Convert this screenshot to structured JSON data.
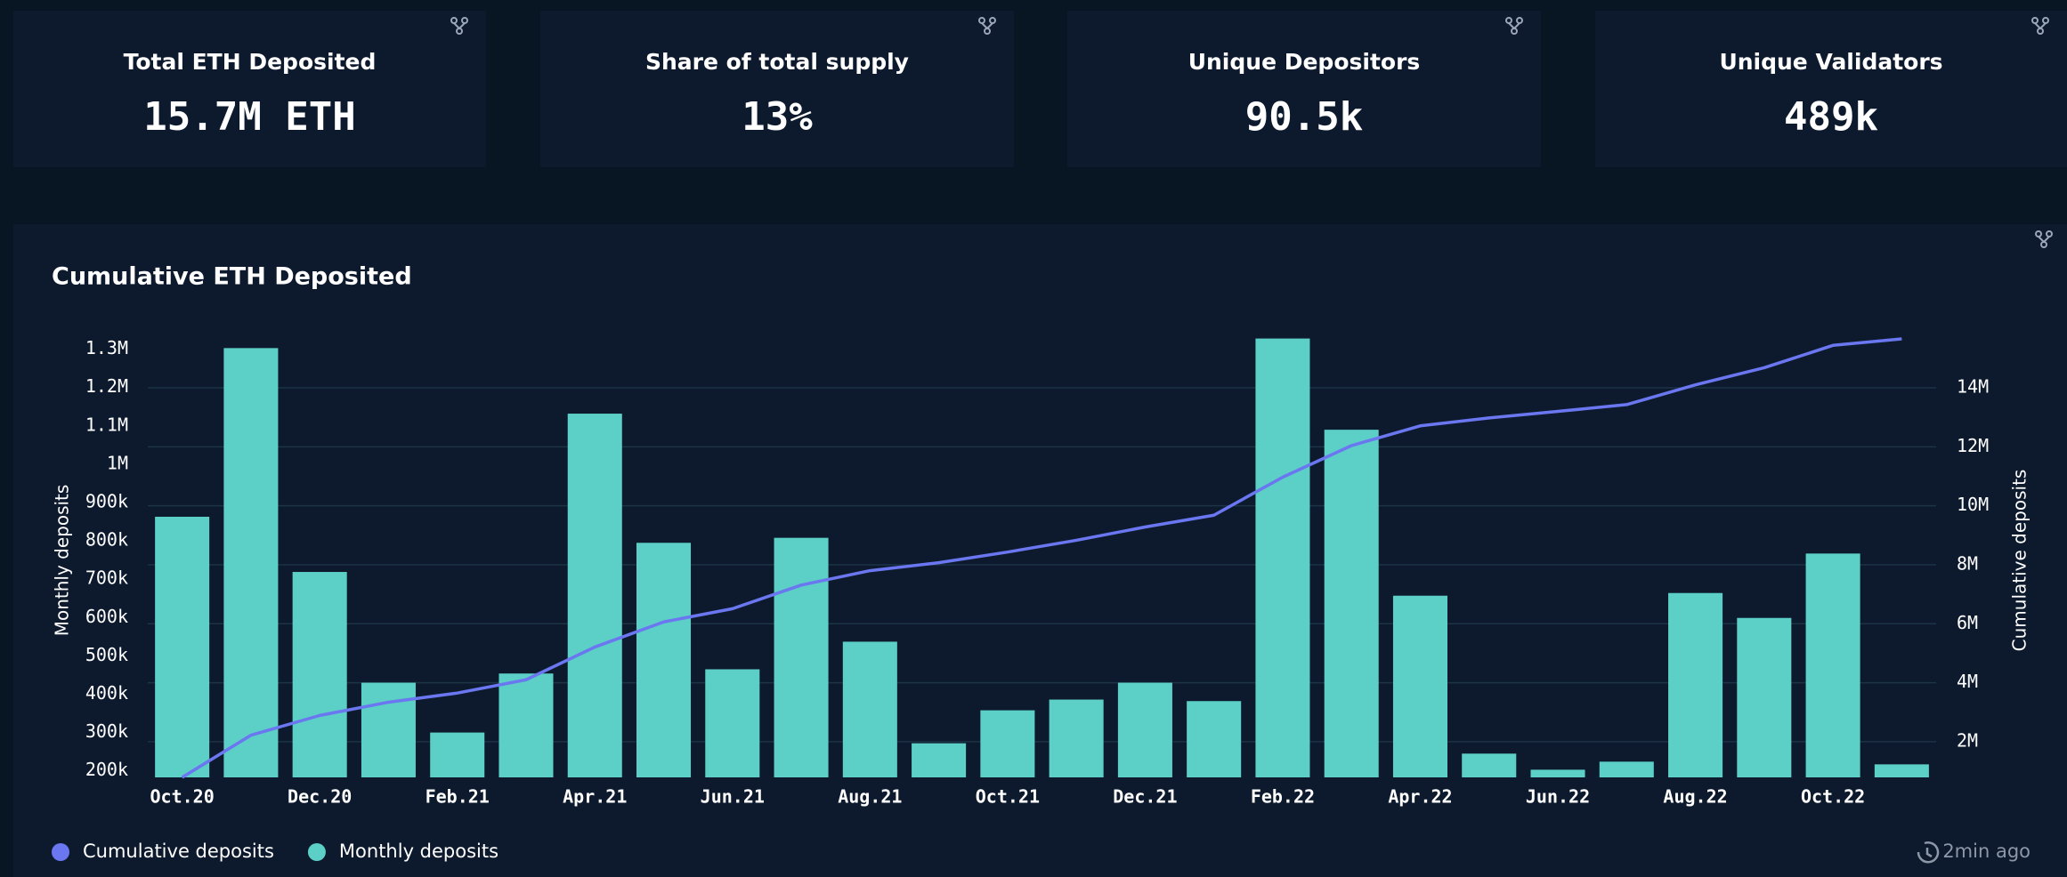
{
  "kpis": [
    {
      "title": "Total ETH Deposited",
      "value": "15.7M ETH"
    },
    {
      "title": "Share of total supply",
      "value": "13%"
    },
    {
      "title": "Unique Depositors",
      "value": "90.5k"
    },
    {
      "title": "Unique Validators",
      "value": "489k"
    }
  ],
  "chart_data": {
    "type": "bar",
    "title": "Cumulative ETH Deposited",
    "y_label": "Monthly deposits",
    "y2_label": "Cumulative deposits",
    "categories": [
      "Oct.20",
      null,
      "Dec.20",
      null,
      "Feb.21",
      null,
      "Apr.21",
      null,
      "Jun.21",
      null,
      "Aug.21",
      null,
      "Oct.21",
      null,
      "Dec.21",
      null,
      "Feb.22",
      null,
      "Apr.22",
      null,
      "Jun.22",
      null,
      "Aug.22",
      null,
      "Oct.22",
      null
    ],
    "series": [
      {
        "name": "Cumulative deposits",
        "type": "line",
        "axis": "y2",
        "color": "#6b77f0",
        "values": [
          790000,
          2220000,
          2890000,
          3340000,
          3650000,
          4100000,
          5210000,
          6060000,
          6510000,
          7310000,
          7800000,
          8070000,
          8430000,
          8830000,
          9280000,
          9680000,
          10970000,
          12040000,
          12710000,
          12980000,
          13200000,
          13430000,
          14100000,
          14680000,
          15440000,
          15660000
        ]
      },
      {
        "name": "Monthly deposits",
        "type": "bar",
        "color": "#5ccfc6",
        "values": [
          863000,
          1303000,
          719000,
          430000,
          300000,
          454000,
          1132000,
          795000,
          465000,
          808000,
          537000,
          272000,
          358000,
          386000,
          430000,
          382000,
          1328000,
          1090000,
          657000,
          245000,
          203000,
          224000,
          664000,
          599000,
          767000,
          217000
        ]
      }
    ],
    "ylim": [
      183000,
      1334000
    ],
    "yticks": [
      {
        "value": 200000,
        "label": "200k"
      },
      {
        "value": 300000,
        "label": "300k"
      },
      {
        "value": 400000,
        "label": "400k"
      },
      {
        "value": 500000,
        "label": "500k"
      },
      {
        "value": 600000,
        "label": "600k"
      },
      {
        "value": 700000,
        "label": "700k"
      },
      {
        "value": 800000,
        "label": "800k"
      },
      {
        "value": 900000,
        "label": "900k"
      },
      {
        "value": 1000000,
        "label": "1M"
      },
      {
        "value": 1100000,
        "label": "1.1M"
      },
      {
        "value": 1200000,
        "label": "1.2M"
      },
      {
        "value": 1300000,
        "label": "1.3M"
      }
    ],
    "y2lim": [
      790000,
      15750000
    ],
    "y2ticks": [
      {
        "value": 2000000,
        "label": "2M"
      },
      {
        "value": 4000000,
        "label": "4M"
      },
      {
        "value": 6000000,
        "label": "6M"
      },
      {
        "value": 8000000,
        "label": "8M"
      },
      {
        "value": 10000000,
        "label": "10M"
      },
      {
        "value": 12000000,
        "label": "12M"
      },
      {
        "value": 14000000,
        "label": "14M"
      }
    ],
    "grid": true,
    "legend": "bottom-left"
  },
  "footer": {
    "updated": "2min ago"
  }
}
